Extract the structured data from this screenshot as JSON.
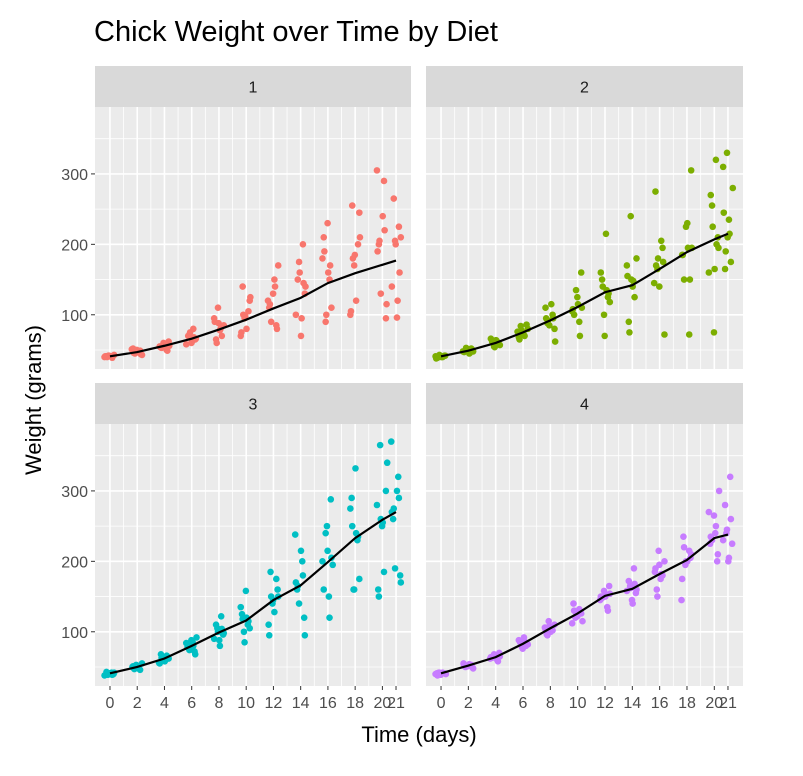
{
  "chart_data": {
    "type": "scatter",
    "title": "Chick Weight over Time by Diet",
    "xlabel": "Time (days)",
    "ylabel": "Weight (grams)",
    "xlim": [
      -1.1,
      22.1
    ],
    "ylim": [
      23,
      395
    ],
    "x_ticks": [
      0,
      2,
      4,
      6,
      8,
      10,
      12,
      14,
      16,
      18,
      20,
      21
    ],
    "y_ticks": [
      100,
      200,
      300
    ],
    "panels": [
      {
        "label": "1",
        "color": "#F8766D",
        "mean_line": {
          "x": [
            0,
            2,
            4,
            6,
            8,
            10,
            12,
            14,
            16,
            18,
            20,
            21
          ],
          "y": [
            41,
            47,
            56,
            66,
            79,
            93,
            109,
            124,
            145,
            159,
            171,
            177
          ]
        },
        "points": {
          "x": [
            0,
            0,
            0,
            0,
            0,
            0,
            0,
            0,
            0,
            0,
            2,
            2,
            2,
            2,
            2,
            2,
            2,
            2,
            2,
            2,
            4,
            4,
            4,
            4,
            4,
            4,
            4,
            4,
            4,
            4,
            6,
            6,
            6,
            6,
            6,
            6,
            6,
            6,
            6,
            6,
            8,
            8,
            8,
            8,
            8,
            8,
            8,
            8,
            8,
            8,
            10,
            10,
            10,
            10,
            10,
            10,
            10,
            10,
            10,
            10,
            12,
            12,
            12,
            12,
            12,
            12,
            12,
            12,
            12,
            12,
            14,
            14,
            14,
            14,
            14,
            14,
            14,
            14,
            14,
            14,
            16,
            16,
            16,
            16,
            16,
            16,
            16,
            16,
            16,
            16,
            18,
            18,
            18,
            18,
            18,
            18,
            18,
            18,
            18,
            18,
            20,
            20,
            20,
            20,
            20,
            20,
            20,
            20,
            20,
            20,
            21,
            21,
            21,
            21,
            21,
            21,
            21,
            21,
            21
          ],
          "y": [
            40,
            41,
            42,
            41,
            39,
            43,
            41,
            40,
            42,
            41,
            49,
            43,
            52,
            45,
            50,
            48,
            44,
            51,
            46,
            47,
            58,
            50,
            62,
            55,
            53,
            60,
            57,
            49,
            56,
            54,
            72,
            60,
            80,
            65,
            58,
            70,
            75,
            62,
            68,
            66,
            95,
            65,
            110,
            78,
            70,
            85,
            90,
            60,
            88,
            80,
            120,
            70,
            140,
            95,
            80,
            105,
            125,
            75,
            100,
            98,
            150,
            85,
            170,
            110,
            90,
            130,
            140,
            80,
            120,
            115,
            175,
            70,
            200,
            130,
            100,
            150,
            160,
            95,
            145,
            140,
            210,
            90,
            230,
            150,
            110,
            180,
            190,
            100,
            160,
            170,
            245,
            100,
            255,
            170,
            120,
            200,
            210,
            105,
            180,
            185,
            290,
            95,
            305,
            200,
            130,
            240,
            220,
            115,
            190,
            205,
            205,
            96,
            225,
            210,
            140,
            265,
            200,
            120,
            160
          ]
        }
      },
      {
        "label": "2",
        "color": "#7CAE00",
        "mean_line": {
          "x": [
            0,
            2,
            4,
            6,
            8,
            10,
            12,
            14,
            16,
            18,
            20,
            21
          ],
          "y": [
            41,
            49,
            60,
            75,
            92,
            111,
            132,
            142,
            165,
            189,
            207,
            215
          ]
        },
        "points": {
          "x": [
            0,
            0,
            0,
            0,
            0,
            0,
            0,
            0,
            0,
            0,
            2,
            2,
            2,
            2,
            2,
            2,
            2,
            2,
            2,
            2,
            4,
            4,
            4,
            4,
            4,
            4,
            4,
            4,
            4,
            4,
            6,
            6,
            6,
            6,
            6,
            6,
            6,
            6,
            6,
            6,
            8,
            8,
            8,
            8,
            8,
            8,
            8,
            8,
            8,
            8,
            10,
            10,
            10,
            10,
            10,
            10,
            10,
            10,
            10,
            10,
            12,
            12,
            12,
            12,
            12,
            12,
            12,
            12,
            12,
            12,
            14,
            14,
            14,
            14,
            14,
            14,
            14,
            14,
            14,
            14,
            16,
            16,
            16,
            16,
            16,
            16,
            16,
            16,
            16,
            16,
            18,
            18,
            18,
            18,
            18,
            18,
            18,
            18,
            18,
            18,
            20,
            20,
            20,
            20,
            20,
            20,
            20,
            20,
            20,
            20,
            21,
            21,
            21,
            21,
            21,
            21,
            21,
            21,
            21,
            21
          ],
          "y": [
            40,
            42,
            41,
            39,
            43,
            40,
            41,
            42,
            38,
            41,
            50,
            45,
            52,
            48,
            47,
            53,
            49,
            46,
            51,
            48,
            62,
            55,
            64,
            58,
            57,
            66,
            60,
            54,
            63,
            59,
            80,
            68,
            84,
            72,
            70,
            86,
            76,
            65,
            78,
            74,
            100,
            80,
            110,
            88,
            85,
            115,
            95,
            62,
            95,
            92,
            125,
            90,
            160,
            105,
            100,
            135,
            115,
            70,
            110,
            108,
            150,
            100,
            215,
            125,
            118,
            160,
            140,
            70,
            135,
            130,
            170,
            90,
            240,
            140,
            125,
            180,
            155,
            75,
            150,
            148,
            195,
            72,
            275,
            165,
            140,
            205,
            175,
            145,
            170,
            180,
            230,
            72,
            305,
            185,
            150,
            225,
            195,
            150,
            195,
            185,
            255,
            75,
            320,
            210,
            160,
            270,
            225,
            165,
            200,
            195,
            310,
            165,
            330,
            235,
            175,
            280,
            245,
            190,
            210,
            215
          ]
        }
      },
      {
        "label": "3",
        "color": "#00BFC4",
        "mean_line": {
          "x": [
            0,
            2,
            4,
            6,
            8,
            10,
            12,
            14,
            16,
            18,
            20,
            21
          ],
          "y": [
            41,
            50,
            62,
            80,
            99,
            116,
            145,
            166,
            199,
            233,
            259,
            270
          ]
        },
        "points": {
          "x": [
            0,
            0,
            0,
            0,
            0,
            0,
            0,
            0,
            0,
            0,
            2,
            2,
            2,
            2,
            2,
            2,
            2,
            2,
            2,
            2,
            4,
            4,
            4,
            4,
            4,
            4,
            4,
            4,
            4,
            4,
            6,
            6,
            6,
            6,
            6,
            6,
            6,
            6,
            6,
            6,
            8,
            8,
            8,
            8,
            8,
            8,
            8,
            8,
            8,
            8,
            10,
            10,
            10,
            10,
            10,
            10,
            10,
            10,
            10,
            10,
            12,
            12,
            12,
            12,
            12,
            12,
            12,
            12,
            12,
            12,
            14,
            14,
            14,
            14,
            14,
            14,
            14,
            14,
            14,
            14,
            16,
            16,
            16,
            16,
            16,
            16,
            16,
            16,
            16,
            16,
            18,
            18,
            18,
            18,
            18,
            18,
            18,
            18,
            18,
            18,
            20,
            20,
            20,
            20,
            20,
            20,
            20,
            20,
            20,
            20,
            21,
            21,
            21,
            21,
            21,
            21,
            21,
            21,
            21,
            21
          ],
          "y": [
            39,
            41,
            42,
            40,
            38,
            43,
            41,
            40,
            39,
            42,
            50,
            47,
            53,
            48,
            46,
            55,
            51,
            49,
            52,
            48,
            64,
            56,
            68,
            60,
            58,
            66,
            62,
            55,
            63,
            61,
            85,
            72,
            92,
            78,
            74,
            88,
            80,
            68,
            84,
            82,
            105,
            88,
            122,
            96,
            90,
            110,
            100,
            80,
            104,
            98,
            125,
            100,
            158,
            110,
            105,
            135,
            118,
            85,
            120,
            115,
            160,
            110,
            185,
            140,
            128,
            175,
            150,
            95,
            150,
            145,
            200,
            120,
            238,
            160,
            140,
            215,
            180,
            95,
            170,
            165,
            250,
            150,
            288,
            195,
            160,
            240,
            215,
            120,
            205,
            200,
            290,
            160,
            332,
            230,
            175,
            275,
            250,
            160,
            240,
            235,
            340,
            160,
            365,
            250,
            185,
            300,
            280,
            150,
            260,
            255,
            320,
            180,
            370,
            260,
            190,
            300,
            290,
            170,
            270,
            275
          ]
        }
      },
      {
        "label": "4",
        "color": "#C77CFF",
        "mean_line": {
          "x": [
            0,
            2,
            4,
            6,
            8,
            10,
            12,
            14,
            16,
            18,
            20,
            21
          ],
          "y": [
            41,
            52,
            64,
            83,
            105,
            126,
            151,
            161,
            182,
            202,
            233,
            238
          ]
        },
        "points": {
          "x": [
            0,
            0,
            0,
            0,
            0,
            0,
            0,
            0,
            0,
            0,
            2,
            2,
            2,
            2,
            2,
            2,
            2,
            2,
            2,
            2,
            4,
            4,
            4,
            4,
            4,
            4,
            4,
            4,
            4,
            4,
            6,
            6,
            6,
            6,
            6,
            6,
            6,
            6,
            6,
            6,
            8,
            8,
            8,
            8,
            8,
            8,
            8,
            8,
            8,
            8,
            10,
            10,
            10,
            10,
            10,
            10,
            10,
            10,
            10,
            10,
            12,
            12,
            12,
            12,
            12,
            12,
            12,
            12,
            12,
            12,
            14,
            14,
            14,
            14,
            14,
            14,
            14,
            14,
            14,
            14,
            16,
            16,
            16,
            16,
            16,
            16,
            16,
            16,
            16,
            16,
            18,
            18,
            18,
            18,
            18,
            18,
            18,
            18,
            18,
            18,
            20,
            20,
            20,
            20,
            20,
            20,
            20,
            20,
            20,
            20,
            21,
            21,
            21,
            21,
            21,
            21,
            21,
            21,
            21
          ],
          "y": [
            40,
            41,
            42,
            39,
            42,
            41,
            40,
            38,
            42,
            41,
            52,
            49,
            55,
            50,
            51,
            54,
            53,
            48,
            52,
            51,
            66,
            60,
            70,
            62,
            63,
            68,
            64,
            58,
            65,
            64,
            85,
            78,
            92,
            80,
            82,
            88,
            84,
            76,
            86,
            83,
            106,
            96,
            115,
            100,
            102,
            110,
            104,
            95,
            108,
            105,
            128,
            115,
            140,
            120,
            122,
            132,
            126,
            112,
            130,
            127,
            150,
            135,
            165,
            145,
            148,
            158,
            152,
            130,
            154,
            150,
            165,
            145,
            190,
            155,
            158,
            172,
            162,
            140,
            168,
            160,
            185,
            160,
            215,
            175,
            180,
            200,
            190,
            150,
            195,
            182,
            205,
            145,
            235,
            195,
            200,
            215,
            210,
            175,
            220,
            200,
            240,
            200,
            300,
            225,
            230,
            265,
            250,
            210,
            270,
            235,
            240,
            200,
            320,
            225,
            230,
            280,
            245,
            205,
            260
          ]
        }
      }
    ]
  }
}
